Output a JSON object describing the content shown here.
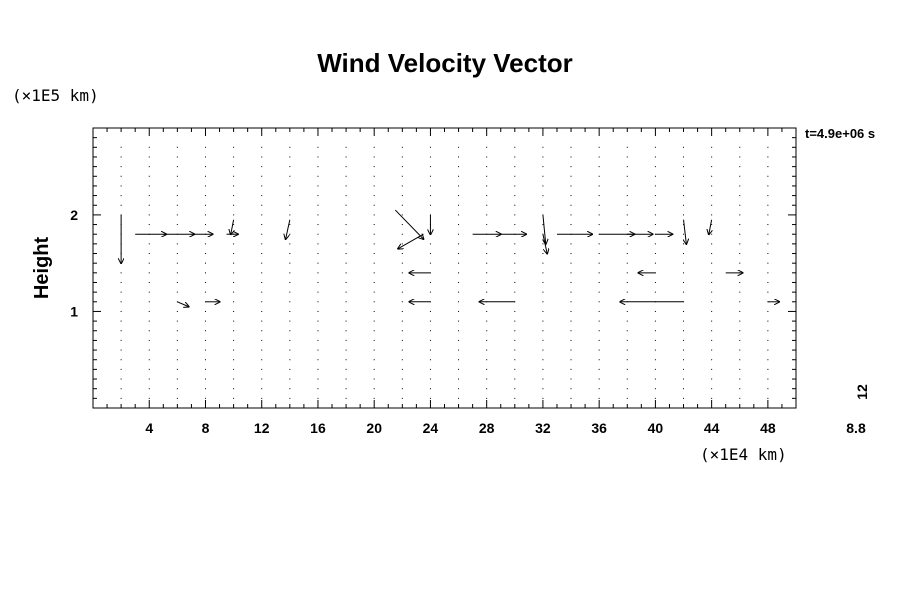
{
  "chart_data": {
    "type": "vector_field",
    "title": "Wind Velocity Vector",
    "ylabel": "Height",
    "xlabel": "",
    "x_unit": "(×1E4 km)",
    "y_unit": "(×1E5 km)",
    "time_label": "t=4.9e+06 s",
    "scale_value": "12",
    "scale_ref": "8.8",
    "xlim": [
      0,
      50
    ],
    "ylim": [
      0,
      2.9
    ],
    "x_ticks": [
      "4",
      "8",
      "12",
      "16",
      "20",
      "24",
      "28",
      "32",
      "36",
      "40",
      "44",
      "48"
    ],
    "y_ticks": [
      "1",
      "2"
    ],
    "x_tick_values": [
      4,
      8,
      12,
      16,
      20,
      24,
      28,
      32,
      36,
      40,
      44,
      48
    ],
    "y_tick_values": [
      1,
      2
    ],
    "grid": false,
    "vectors": [
      {
        "x": 2,
        "y": 2.0,
        "u": 0.0,
        "v": -0.5
      },
      {
        "x": 3,
        "y": 1.8,
        "u": 2.2,
        "v": 0.0
      },
      {
        "x": 5,
        "y": 1.8,
        "u": 2.2,
        "v": 0.0
      },
      {
        "x": 7,
        "y": 1.8,
        "u": 1.5,
        "v": 0.0
      },
      {
        "x": 9.5,
        "y": 1.8,
        "u": 0.8,
        "v": 0.0
      },
      {
        "x": 10,
        "y": 1.95,
        "u": -0.2,
        "v": -0.15
      },
      {
        "x": 14,
        "y": 1.95,
        "u": -0.3,
        "v": -0.2
      },
      {
        "x": 21.5,
        "y": 2.05,
        "u": 2.0,
        "v": -0.3
      },
      {
        "x": 23.5,
        "y": 1.8,
        "u": -1.8,
        "v": -0.15
      },
      {
        "x": 24,
        "y": 2.0,
        "u": 0.0,
        "v": -0.2
      },
      {
        "x": 27,
        "y": 1.8,
        "u": 2.0,
        "v": 0.0
      },
      {
        "x": 29,
        "y": 1.8,
        "u": 1.8,
        "v": 0.0
      },
      {
        "x": 32,
        "y": 2.0,
        "u": 0.2,
        "v": -0.3
      },
      {
        "x": 32,
        "y": 1.8,
        "u": 0.3,
        "v": -0.2
      },
      {
        "x": 33,
        "y": 1.8,
        "u": 2.5,
        "v": 0.0
      },
      {
        "x": 36,
        "y": 1.8,
        "u": 2.5,
        "v": 0.0
      },
      {
        "x": 38,
        "y": 1.8,
        "u": 1.8,
        "v": 0.0
      },
      {
        "x": 40,
        "y": 1.8,
        "u": 1.2,
        "v": 0.0
      },
      {
        "x": 42,
        "y": 1.95,
        "u": 0.2,
        "v": -0.25
      },
      {
        "x": 44,
        "y": 1.95,
        "u": -0.2,
        "v": -0.15
      },
      {
        "x": 24,
        "y": 1.4,
        "u": -1.5,
        "v": 0.0
      },
      {
        "x": 30,
        "y": 1.1,
        "u": -2.5,
        "v": 0.0
      },
      {
        "x": 42,
        "y": 1.1,
        "u": -4.5,
        "v": 0.0
      },
      {
        "x": 24,
        "y": 1.1,
        "u": -1.5,
        "v": 0.0
      },
      {
        "x": 40,
        "y": 1.4,
        "u": -1.2,
        "v": 0.0
      },
      {
        "x": 45,
        "y": 1.4,
        "u": 1.2,
        "v": 0.0
      },
      {
        "x": 48,
        "y": 1.1,
        "u": 0.8,
        "v": 0.0
      },
      {
        "x": 6,
        "y": 1.1,
        "u": 0.8,
        "v": -0.05
      },
      {
        "x": 8,
        "y": 1.1,
        "u": 1.0,
        "v": 0.0
      }
    ]
  }
}
